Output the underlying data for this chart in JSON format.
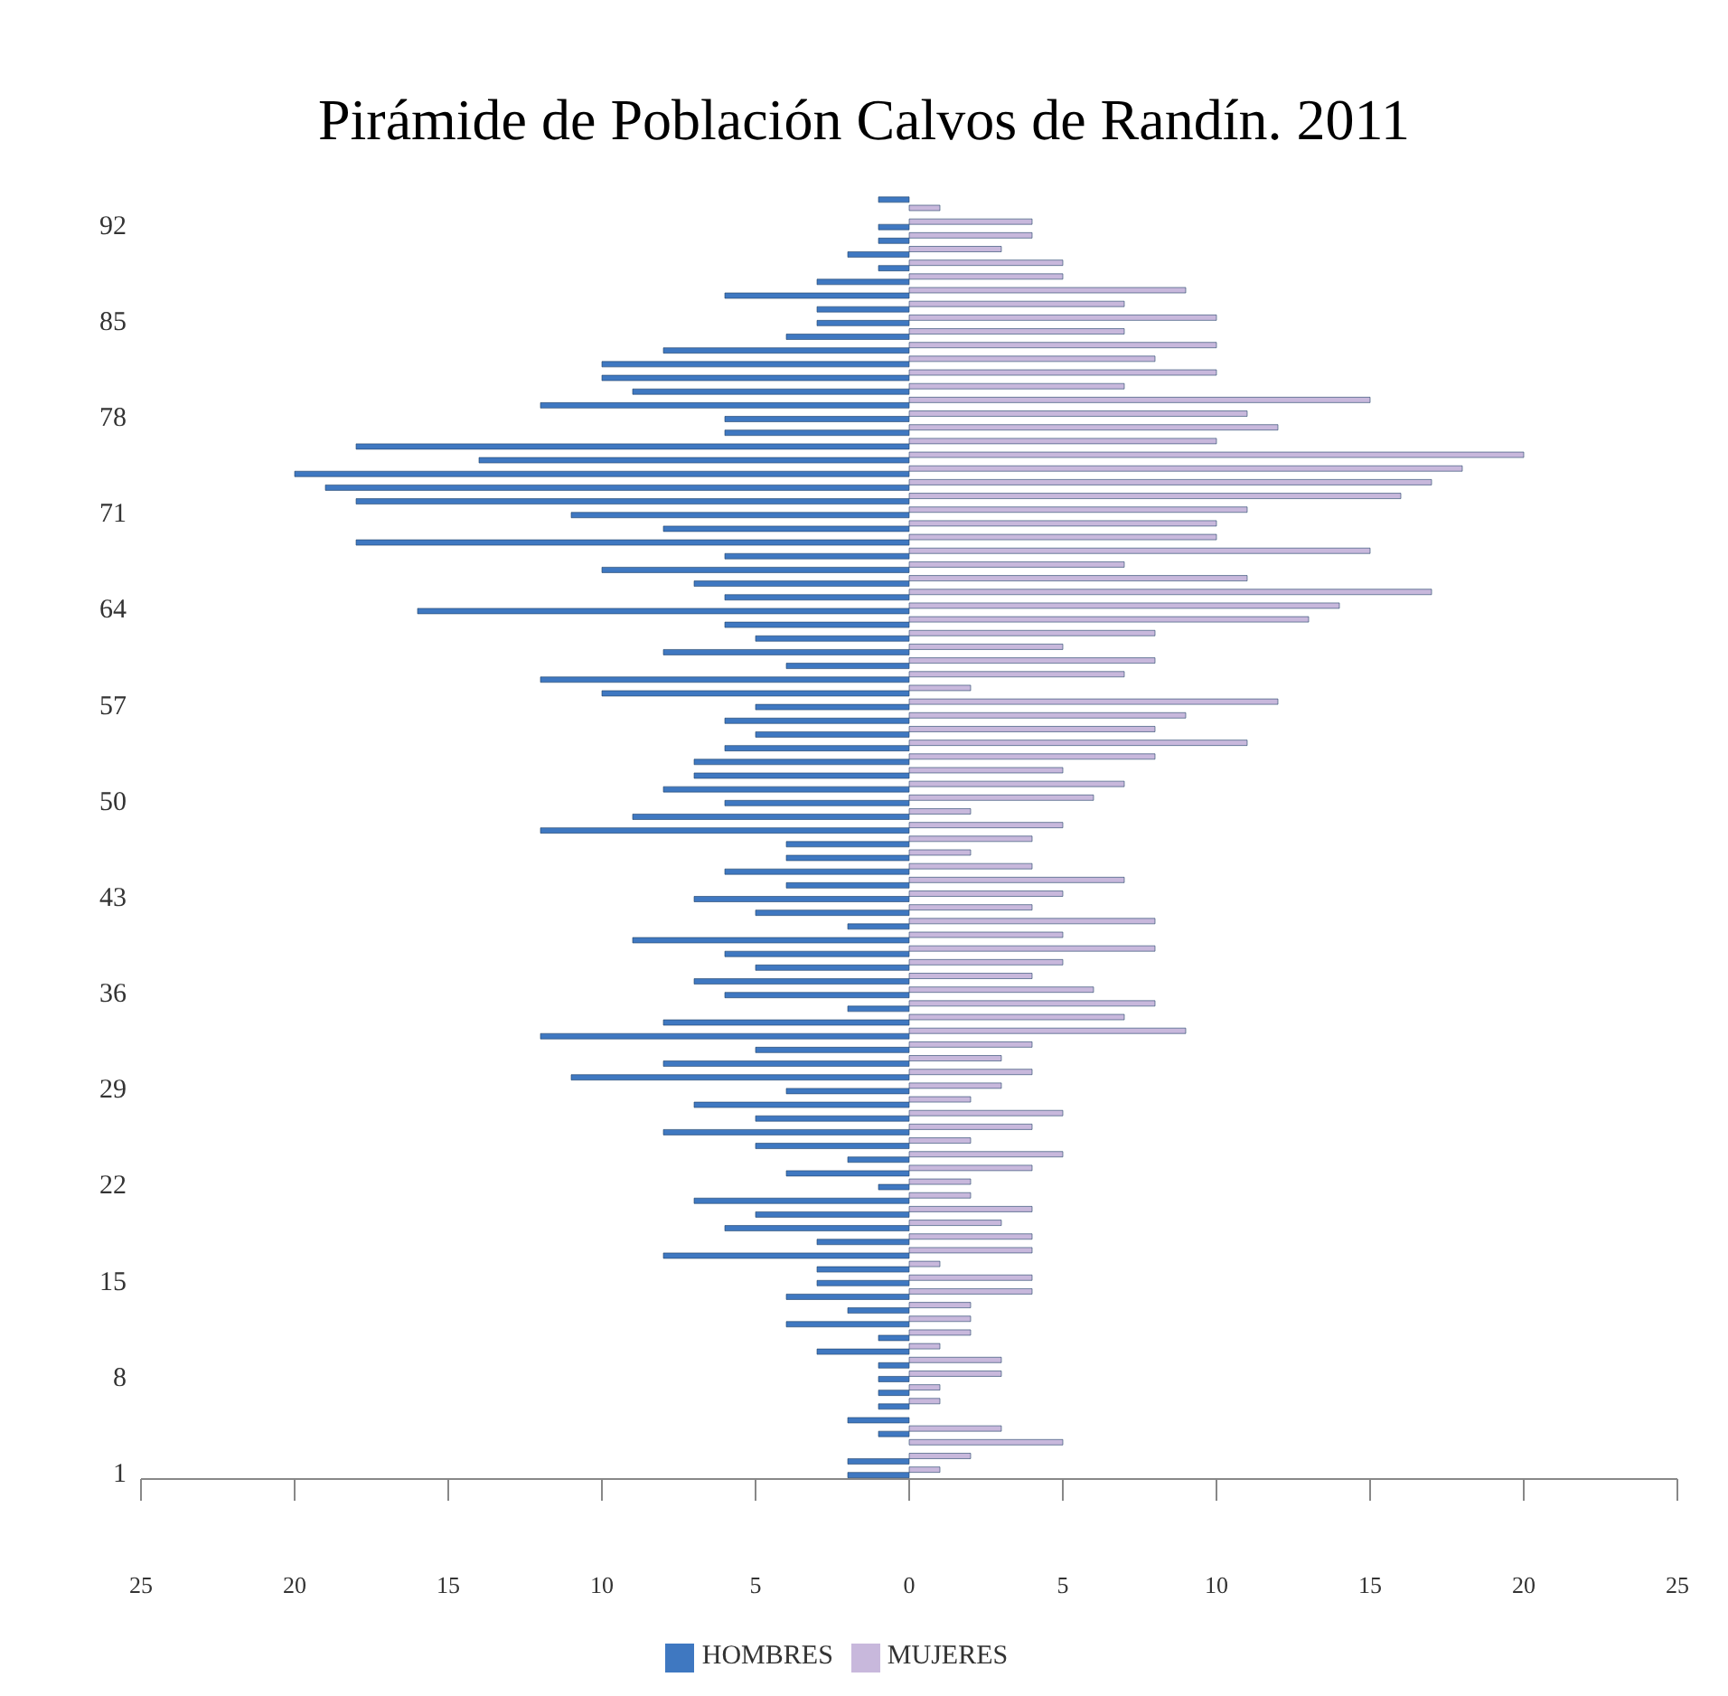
{
  "chart_data": {
    "type": "bar",
    "orientation": "horizontal",
    "title": "Pirámide de Población Calvos de Randín. 2011",
    "categories": [
      null,
      null,
      "92",
      null,
      null,
      null,
      null,
      null,
      null,
      "85",
      null,
      null,
      null,
      null,
      null,
      null,
      "78",
      null,
      null,
      null,
      null,
      null,
      null,
      "71",
      null,
      null,
      null,
      null,
      null,
      null,
      "64",
      null,
      null,
      null,
      null,
      null,
      null,
      "57",
      null,
      null,
      null,
      null,
      null,
      null,
      "50",
      null,
      null,
      null,
      null,
      null,
      null,
      "43",
      null,
      null,
      null,
      null,
      null,
      null,
      "36",
      null,
      null,
      null,
      null,
      null,
      null,
      "29",
      null,
      null,
      null,
      null,
      null,
      null,
      "22",
      null,
      null,
      null,
      null,
      null,
      null,
      "15",
      null,
      null,
      null,
      null,
      null,
      null,
      "8",
      null,
      null,
      null,
      null,
      null,
      null,
      "1"
    ],
    "series": [
      {
        "name": "MUJERES",
        "color": "#c8b8dc",
        "values": [
          0,
          1,
          4,
          4,
          3,
          5,
          5,
          9,
          7,
          10,
          7,
          10,
          8,
          10,
          7,
          15,
          11,
          12,
          10,
          20,
          18,
          17,
          16,
          11,
          10,
          10,
          15,
          7,
          11,
          17,
          14,
          13,
          8,
          5,
          8,
          7,
          2,
          12,
          9,
          8,
          11,
          8,
          5,
          7,
          6,
          2,
          5,
          4,
          2,
          4,
          7,
          5,
          4,
          8,
          5,
          8,
          5,
          4,
          6,
          8,
          7,
          9,
          4,
          3,
          4,
          3,
          2,
          5,
          4,
          2,
          5,
          4,
          2,
          2,
          4,
          3,
          4,
          4,
          1,
          4,
          4,
          2,
          2,
          2,
          1,
          3,
          3,
          1,
          1,
          0,
          3,
          5,
          2,
          1
        ]
      },
      {
        "name": "HOMBRES",
        "color": "#3f78c1",
        "values": [
          -1,
          0,
          -1,
          -1,
          -2,
          -1,
          -3,
          -6,
          -3,
          -3,
          -4,
          -8,
          -10,
          -10,
          -9,
          -12,
          -6,
          -6,
          -18,
          -14,
          -20,
          -19,
          -18,
          -11,
          -8,
          -18,
          -6,
          -10,
          -7,
          -6,
          -16,
          -6,
          -5,
          -8,
          -4,
          -12,
          -10,
          -5,
          -6,
          -5,
          -6,
          -7,
          -7,
          -8,
          -6,
          -9,
          -12,
          -4,
          -4,
          -6,
          -4,
          -7,
          -5,
          -2,
          -9,
          -6,
          -5,
          -7,
          -6,
          -2,
          -8,
          -12,
          -5,
          -8,
          -11,
          -4,
          -7,
          -5,
          -8,
          -5,
          -2,
          -4,
          -1,
          -7,
          -5,
          -6,
          -3,
          -8,
          -3,
          -3,
          -4,
          -2,
          -4,
          -1,
          -3,
          -1,
          -1,
          -1,
          -1,
          -2,
          -1,
          0,
          -2,
          -2
        ]
      }
    ],
    "xlim": [
      -25,
      25
    ],
    "xticks": [
      {
        "value": -25,
        "label": "25"
      },
      {
        "value": -20,
        "label": "20"
      },
      {
        "value": -15,
        "label": "15"
      },
      {
        "value": -10,
        "label": "10"
      },
      {
        "value": -5,
        "label": "5"
      },
      0,
      5,
      10,
      15,
      20,
      25
    ],
    "grid": false,
    "legend": "bottom"
  }
}
